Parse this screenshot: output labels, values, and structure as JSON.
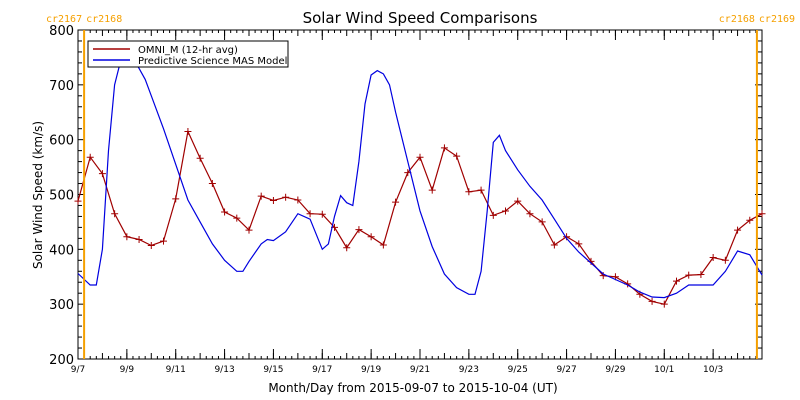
{
  "chart_data": {
    "type": "line",
    "title": "Solar Wind Speed Comparisons",
    "xlabel": "Month/Day from 2015-09-07 to 2015-10-04 (UT)",
    "ylabel": "Solar Wind Speed (km/s)",
    "xlim": [
      "2015-09-07",
      "2015-10-05"
    ],
    "ylim": [
      200,
      800
    ],
    "x_tick_labels": [
      "9/7",
      "9/9",
      "9/11",
      "9/13",
      "9/15",
      "9/17",
      "9/19",
      "9/21",
      "9/23",
      "9/25",
      "9/27",
      "9/29",
      "10/1",
      "10/3"
    ],
    "x_tick_dates": [
      "2015-09-07",
      "2015-09-09",
      "2015-09-11",
      "2015-09-13",
      "2015-09-15",
      "2015-09-17",
      "2015-09-19",
      "2015-09-21",
      "2015-09-23",
      "2015-09-25",
      "2015-09-27",
      "2015-09-29",
      "2015-10-01",
      "2015-10-03"
    ],
    "y_ticks": [
      200,
      300,
      400,
      500,
      600,
      700,
      800
    ],
    "grid": false,
    "legend_position": "top-left",
    "carrington_markers": [
      {
        "date": "2015-09-07 06:00",
        "labels": [
          "cr2167",
          "cr2168"
        ],
        "color": "#f5a000"
      },
      {
        "date": "2015-10-04 19:00",
        "labels": [
          "cr2168",
          "cr2169"
        ],
        "color": "#f5a000"
      }
    ],
    "series": [
      {
        "name": "OMNI_M (12-hr avg)",
        "color": "#a00000",
        "marker": "+",
        "x": [
          "2015-09-07 00:00",
          "2015-09-07 12:00",
          "2015-09-08 00:00",
          "2015-09-08 12:00",
          "2015-09-09 00:00",
          "2015-09-09 12:00",
          "2015-09-10 00:00",
          "2015-09-10 12:00",
          "2015-09-11 00:00",
          "2015-09-11 12:00",
          "2015-09-12 00:00",
          "2015-09-12 12:00",
          "2015-09-13 00:00",
          "2015-09-13 12:00",
          "2015-09-14 00:00",
          "2015-09-14 12:00",
          "2015-09-15 00:00",
          "2015-09-15 12:00",
          "2015-09-16 00:00",
          "2015-09-16 12:00",
          "2015-09-17 00:00",
          "2015-09-17 12:00",
          "2015-09-18 00:00",
          "2015-09-18 12:00",
          "2015-09-19 00:00",
          "2015-09-19 12:00",
          "2015-09-20 00:00",
          "2015-09-20 12:00",
          "2015-09-21 00:00",
          "2015-09-21 12:00",
          "2015-09-22 00:00",
          "2015-09-22 12:00",
          "2015-09-23 00:00",
          "2015-09-23 12:00",
          "2015-09-24 00:00",
          "2015-09-24 12:00",
          "2015-09-25 00:00",
          "2015-09-25 12:00",
          "2015-09-26 00:00",
          "2015-09-26 12:00",
          "2015-09-27 00:00",
          "2015-09-27 12:00",
          "2015-09-28 00:00",
          "2015-09-28 12:00",
          "2015-09-29 00:00",
          "2015-09-29 12:00",
          "2015-09-30 00:00",
          "2015-09-30 12:00",
          "2015-10-01 00:00",
          "2015-10-01 12:00",
          "2015-10-02 00:00",
          "2015-10-02 12:00",
          "2015-10-03 00:00",
          "2015-10-03 12:00",
          "2015-10-04 00:00",
          "2015-10-04 12:00",
          "2015-10-05 00:00"
        ],
        "values": [
          488,
          568,
          538,
          465,
          423,
          418,
          407,
          415,
          492,
          615,
          566,
          520,
          468,
          457,
          435,
          497,
          489,
          495,
          490,
          465,
          464,
          440,
          403,
          436,
          423,
          408,
          486,
          540,
          568,
          508,
          585,
          570,
          505,
          508,
          462,
          470,
          488,
          465,
          450,
          408,
          423,
          410,
          378,
          352,
          350,
          337,
          318,
          305,
          300,
          342,
          353,
          354,
          385,
          380,
          435,
          453,
          465
        ]
      },
      {
        "name": "Predictive Science MAS Model",
        "color": "#0000e0",
        "x": [
          "2015-09-07 00:00",
          "2015-09-07 12:00",
          "2015-09-07 18:00",
          "2015-09-08 00:00",
          "2015-09-08 06:00",
          "2015-09-08 12:00",
          "2015-09-08 18:00",
          "2015-09-09 00:00",
          "2015-09-09 06:00",
          "2015-09-09 12:00",
          "2015-09-09 18:00",
          "2015-09-10 00:00",
          "2015-09-10 12:00",
          "2015-09-11 00:00",
          "2015-09-11 12:00",
          "2015-09-12 00:00",
          "2015-09-12 12:00",
          "2015-09-13 00:00",
          "2015-09-13 12:00",
          "2015-09-13 18:00",
          "2015-09-14 00:00",
          "2015-09-14 12:00",
          "2015-09-14 18:00",
          "2015-09-15 00:00",
          "2015-09-15 12:00",
          "2015-09-16 00:00",
          "2015-09-16 12:00",
          "2015-09-17 00:00",
          "2015-09-17 06:00",
          "2015-09-17 12:00",
          "2015-09-17 18:00",
          "2015-09-18 00:00",
          "2015-09-18 06:00",
          "2015-09-18 12:00",
          "2015-09-18 18:00",
          "2015-09-19 00:00",
          "2015-09-19 06:00",
          "2015-09-19 12:00",
          "2015-09-19 18:00",
          "2015-09-20 00:00",
          "2015-09-20 12:00",
          "2015-09-21 00:00",
          "2015-09-21 12:00",
          "2015-09-22 00:00",
          "2015-09-22 12:00",
          "2015-09-23 00:00",
          "2015-09-23 06:00",
          "2015-09-23 12:00",
          "2015-09-23 18:00",
          "2015-09-24 00:00",
          "2015-09-24 06:00",
          "2015-09-24 12:00",
          "2015-09-25 00:00",
          "2015-09-25 12:00",
          "2015-09-26 00:00",
          "2015-09-26 12:00",
          "2015-09-27 00:00",
          "2015-09-27 12:00",
          "2015-09-28 00:00",
          "2015-09-28 12:00",
          "2015-09-29 00:00",
          "2015-09-29 12:00",
          "2015-09-30 00:00",
          "2015-09-30 12:00",
          "2015-10-01 00:00",
          "2015-10-01 12:00",
          "2015-10-02 00:00",
          "2015-10-02 12:00",
          "2015-10-03 00:00",
          "2015-10-03 12:00",
          "2015-10-04 00:00",
          "2015-10-04 12:00",
          "2015-10-05 00:00"
        ],
        "values": [
          356,
          335,
          335,
          400,
          580,
          700,
          745,
          740,
          748,
          730,
          710,
          680,
          620,
          555,
          490,
          450,
          410,
          380,
          360,
          360,
          378,
          410,
          418,
          416,
          432,
          465,
          455,
          400,
          410,
          460,
          498,
          485,
          480,
          560,
          665,
          718,
          726,
          720,
          700,
          650,
          560,
          470,
          405,
          355,
          330,
          318,
          318,
          360,
          470,
          595,
          608,
          580,
          545,
          515,
          490,
          455,
          420,
          395,
          375,
          355,
          345,
          335,
          322,
          313,
          312,
          320,
          335,
          335,
          335,
          360,
          397,
          390,
          353
        ]
      }
    ]
  }
}
